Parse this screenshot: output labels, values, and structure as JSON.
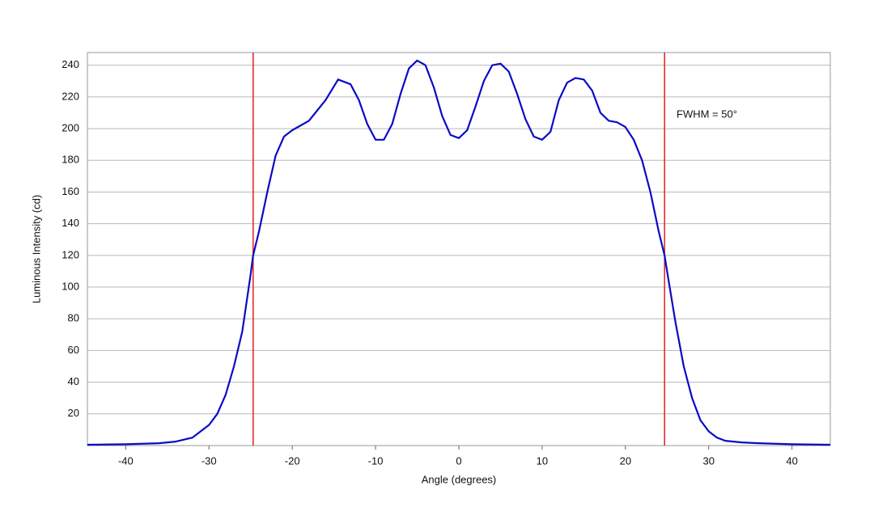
{
  "chart_data": {
    "type": "line",
    "x_label": "Angle (degrees)",
    "y_label": "Luminous Intensity (cd)",
    "annotation": "FWHM = 50°",
    "xlim": [
      -44.6,
      44.6
    ],
    "ylim": [
      0,
      248
    ],
    "xticks": [
      -40,
      -30,
      -20,
      -10,
      0,
      10,
      20,
      30,
      40
    ],
    "yticks": [
      20,
      40,
      60,
      80,
      100,
      120,
      140,
      160,
      180,
      200,
      220,
      240
    ],
    "grid": true,
    "vlines": [
      -24.7,
      24.7
    ],
    "vline_color": "#e02020",
    "x": [
      -44.6,
      -40,
      -36,
      -34,
      -32,
      -30,
      -29,
      -28,
      -27,
      -26,
      -25,
      -24.7,
      -24,
      -23,
      -22,
      -21,
      -20,
      -18,
      -16,
      -14.5,
      -13,
      -12,
      -11,
      -10,
      -9,
      -8,
      -7,
      -6,
      -5,
      -4,
      -3,
      -2,
      -1,
      0,
      1,
      2,
      3,
      4,
      5,
      6,
      7,
      8,
      9,
      10,
      11,
      12,
      13,
      14,
      15,
      16,
      17,
      18,
      19,
      20,
      21,
      22,
      23,
      24,
      24.7,
      25,
      26,
      27,
      28,
      29,
      30,
      31,
      32,
      34,
      36,
      40,
      44.6
    ],
    "series": [
      {
        "name": "Luminous Intensity",
        "color": "#0a0ac8",
        "values": [
          0.5,
          0.8,
          1.5,
          2.5,
          5,
          13,
          20,
          32,
          50,
          72,
          108,
          120,
          135,
          160,
          183,
          195,
          199,
          205,
          218,
          231,
          228,
          218,
          203,
          193,
          193,
          203,
          222,
          238,
          243,
          240,
          226,
          208,
          196,
          194,
          199,
          214,
          230,
          240,
          241,
          236,
          222,
          206,
          195,
          193,
          198,
          218,
          229,
          232,
          231,
          224,
          210,
          205,
          204,
          201,
          193,
          180,
          160,
          135,
          120,
          110,
          78,
          50,
          30,
          16,
          9,
          5,
          3,
          2,
          1.5,
          0.8,
          0.5
        ]
      }
    ]
  }
}
